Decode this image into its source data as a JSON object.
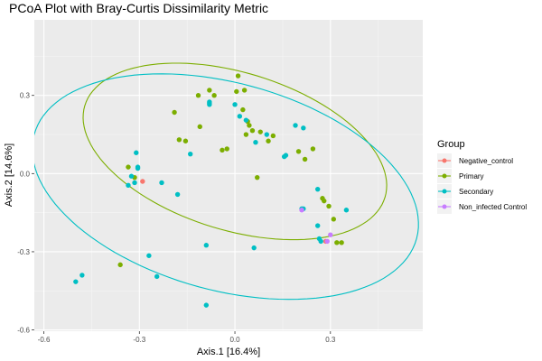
{
  "chart_data": {
    "type": "scatter",
    "title": "PCoA Plot with Bray-Curtis Dissimilarity Metric",
    "xlabel": "Axis.1   [16.4%]",
    "ylabel": "Axis.2   [14.6%]",
    "xlim": [
      -0.63,
      0.59
    ],
    "ylim": [
      -0.605,
      0.59
    ],
    "xticks": [
      -0.6,
      -0.3,
      0.0,
      0.3
    ],
    "xtick_labels": [
      "-0.6",
      "-0.3",
      "0.0",
      "0.3"
    ],
    "yticks": [
      -0.6,
      -0.3,
      0.0,
      0.3
    ],
    "ytick_labels": [
      "-0.6",
      "-0.3",
      "0.0",
      "0.3"
    ],
    "grid": true,
    "legend": {
      "title": "Group",
      "position": "right"
    },
    "series": [
      {
        "name": "Negative_control",
        "color": "#F8766D",
        "points": [
          [
            -0.29,
            -0.03
          ],
          [
            0.285,
            -0.26
          ]
        ]
      },
      {
        "name": "Primary",
        "color": "#7CAE00",
        "points": [
          [
            0.01,
            0.375
          ],
          [
            -0.08,
            0.32
          ],
          [
            -0.065,
            0.3
          ],
          [
            -0.115,
            0.3
          ],
          [
            -0.19,
            0.235
          ],
          [
            0.005,
            0.315
          ],
          [
            0.03,
            0.32
          ],
          [
            0.04,
            0.2
          ],
          [
            0.045,
            0.185
          ],
          [
            0.055,
            0.165
          ],
          [
            0.035,
            0.15
          ],
          [
            0.08,
            0.16
          ],
          [
            0.105,
            0.125
          ],
          [
            0.12,
            0.145
          ],
          [
            0.025,
            0.245
          ],
          [
            -0.11,
            0.18
          ],
          [
            -0.175,
            0.13
          ],
          [
            -0.155,
            0.125
          ],
          [
            -0.04,
            0.09
          ],
          [
            -0.025,
            0.095
          ],
          [
            0.07,
            -0.015
          ],
          [
            0.2,
            0.085
          ],
          [
            0.22,
            0.055
          ],
          [
            0.245,
            0.095
          ],
          [
            0.275,
            -0.095
          ],
          [
            0.28,
            -0.105
          ],
          [
            0.295,
            -0.125
          ],
          [
            0.31,
            -0.175
          ],
          [
            0.32,
            -0.265
          ],
          [
            0.335,
            -0.265
          ],
          [
            -0.335,
            0.025
          ],
          [
            -0.315,
            -0.015
          ],
          [
            -0.36,
            -0.35
          ]
        ]
      },
      {
        "name": "Secondary",
        "color": "#00BFC4",
        "points": [
          [
            -0.08,
            0.275
          ],
          [
            -0.08,
            0.27
          ],
          [
            -0.08,
            0.265
          ],
          [
            0.0,
            0.265
          ],
          [
            0.015,
            0.22
          ],
          [
            0.035,
            0.205
          ],
          [
            -0.14,
            0.075
          ],
          [
            -0.31,
            0.08
          ],
          [
            -0.305,
            0.025
          ],
          [
            -0.305,
            0.02
          ],
          [
            -0.325,
            -0.01
          ],
          [
            -0.335,
            -0.045
          ],
          [
            -0.315,
            -0.035
          ],
          [
            -0.23,
            -0.035
          ],
          [
            -0.18,
            -0.08
          ],
          [
            0.1,
            0.15
          ],
          [
            0.065,
            0.12
          ],
          [
            0.155,
            0.065
          ],
          [
            0.16,
            0.07
          ],
          [
            0.19,
            0.185
          ],
          [
            0.215,
            0.175
          ],
          [
            0.26,
            -0.06
          ],
          [
            0.26,
            -0.2
          ],
          [
            0.265,
            -0.25
          ],
          [
            0.27,
            -0.26
          ],
          [
            0.21,
            -0.135
          ],
          [
            0.215,
            -0.135
          ],
          [
            0.35,
            -0.14
          ],
          [
            0.06,
            -0.285
          ],
          [
            -0.09,
            -0.275
          ],
          [
            -0.27,
            -0.315
          ],
          [
            -0.245,
            -0.395
          ],
          [
            -0.09,
            -0.505
          ],
          [
            -0.5,
            -0.415
          ],
          [
            -0.48,
            -0.39
          ]
        ]
      },
      {
        "name": "Non_infected Control",
        "color": "#C77CFF",
        "points": [
          [
            0.21,
            -0.14
          ],
          [
            0.3,
            -0.235
          ],
          [
            0.29,
            -0.26
          ]
        ]
      }
    ],
    "ellipses": [
      {
        "group": "Primary",
        "color": "#7CAE00",
        "cx": 0.0,
        "cy": 0.085,
        "rx": 0.505,
        "ry": 0.295,
        "angle_deg": -24
      },
      {
        "group": "Secondary",
        "color": "#00BFC4",
        "cx": -0.03,
        "cy": -0.05,
        "rx": 0.635,
        "ry": 0.39,
        "angle_deg": -22
      }
    ]
  }
}
